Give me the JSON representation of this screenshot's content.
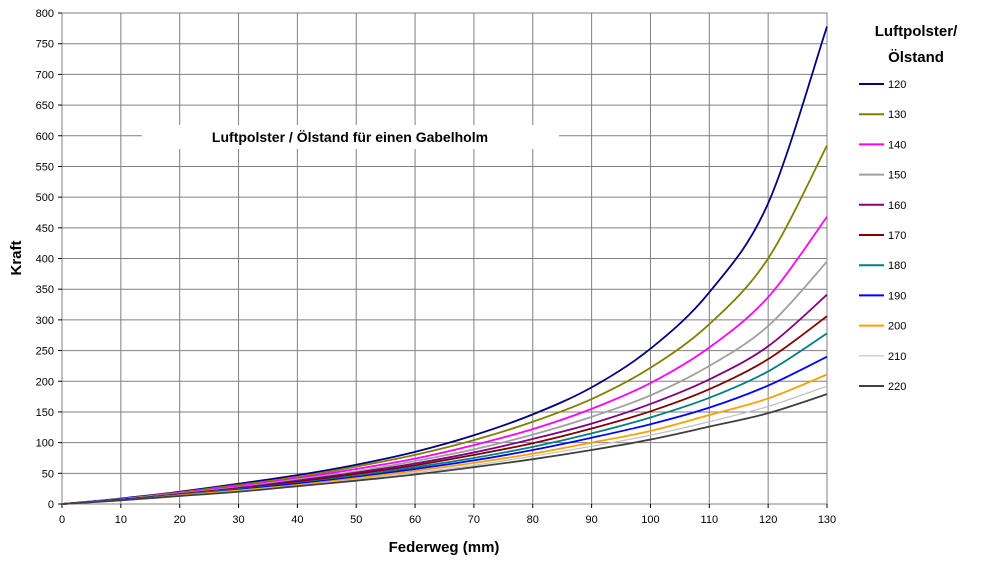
{
  "chart_data": {
    "type": "line",
    "title": "Luftpolster / Ölstand für einen Gabelholm",
    "xlabel": "Federweg (mm)",
    "ylabel": "Kraft",
    "xlim": [
      0,
      130
    ],
    "ylim": [
      0,
      800
    ],
    "xticks": [
      0,
      10,
      20,
      30,
      40,
      50,
      60,
      70,
      80,
      90,
      100,
      110,
      120,
      130
    ],
    "yticks": [
      0,
      50,
      100,
      150,
      200,
      250,
      300,
      350,
      400,
      450,
      500,
      550,
      600,
      650,
      700,
      750,
      800
    ],
    "grid": true,
    "legend_title_line1": "Luftpolster/",
    "legend_title_line2": "Ölstand",
    "legend_position": "right",
    "x": [
      0,
      10,
      20,
      30,
      40,
      50,
      60,
      70,
      80,
      90,
      100,
      110,
      120,
      130
    ],
    "series": [
      {
        "name": "120",
        "color": "#000080",
        "values": [
          0,
          9,
          20,
          33,
          47,
          64,
          85,
          112,
          146,
          190,
          253,
          345,
          490,
          778
        ]
      },
      {
        "name": "130",
        "color": "#808000",
        "values": [
          0,
          8,
          19,
          31,
          44,
          61,
          80,
          104,
          134,
          171,
          222,
          293,
          400,
          584
        ]
      },
      {
        "name": "140",
        "color": "#FF00FF",
        "values": [
          0,
          8,
          18,
          29,
          42,
          57,
          74,
          96,
          122,
          155,
          197,
          255,
          337,
          468
        ]
      },
      {
        "name": "150",
        "color": "#A0A0A0",
        "values": [
          0,
          8,
          17,
          27,
          40,
          53,
          70,
          89,
          113,
          142,
          177,
          225,
          290,
          395
        ]
      },
      {
        "name": "160",
        "color": "#800080",
        "values": [
          0,
          7,
          16,
          26,
          38,
          51,
          66,
          84,
          106,
          131,
          163,
          203,
          257,
          341
        ]
      },
      {
        "name": "170",
        "color": "#800000",
        "values": [
          0,
          7,
          16,
          25,
          36,
          49,
          63,
          80,
          99,
          123,
          151,
          187,
          236,
          306
        ]
      },
      {
        "name": "180",
        "color": "#008080",
        "values": [
          0,
          7,
          15,
          24,
          34,
          46,
          60,
          75,
          93,
          115,
          141,
          173,
          216,
          278
        ]
      },
      {
        "name": "190",
        "color": "#0000FF",
        "values": [
          0,
          7,
          14,
          23,
          33,
          44,
          57,
          71,
          88,
          108,
          130,
          157,
          193,
          240
        ]
      },
      {
        "name": "200",
        "color": "#FFA000",
        "values": [
          0,
          6,
          14,
          22,
          31,
          42,
          54,
          67,
          82,
          100,
          119,
          145,
          172,
          211
        ]
      },
      {
        "name": "210",
        "color": "#C0C0C0",
        "values": [
          0,
          6,
          13,
          21,
          30,
          40,
          51,
          63,
          78,
          94,
          112,
          134,
          159,
          192
        ]
      },
      {
        "name": "220",
        "color": "#404040",
        "values": [
          0,
          6,
          13,
          20,
          29,
          38,
          48,
          60,
          73,
          88,
          105,
          126,
          148,
          179
        ]
      }
    ]
  }
}
